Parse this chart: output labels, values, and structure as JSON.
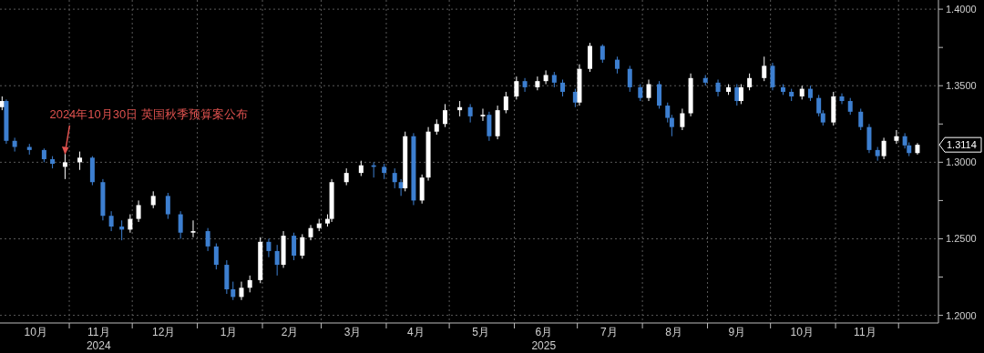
{
  "chart_data": {
    "type": "candlestick",
    "colors": [
      "#ffffff",
      "#3d7fd0",
      "#3d7fd0",
      "#3d7fd0",
      "#3d7fd0",
      "#3d7fd0",
      "#ffffff",
      "#ffffff",
      "#3d7fd0",
      "#3d7fd0",
      "#3d7fd0",
      "#3d7fd0",
      "#ffffff",
      "#ffffff",
      "#ffffff",
      "#3d7fd0",
      "#3d7fd0",
      "#ffffff",
      "#3d7fd0",
      "#3d7fd0",
      "#3d7fd0",
      "#3d7fd0",
      "#ffffff",
      "#ffffff",
      "#ffffff",
      "#3d7fd0",
      "#3d7fd0",
      "#ffffff",
      "#3d7fd0",
      "#ffffff",
      "#ffffff",
      "#ffffff",
      "#ffffff",
      "#ffffff",
      "#ffffff",
      "#ffffff",
      "#3d7fd0",
      "#3d7fd0",
      "#3d7fd0",
      "#3d7fd0",
      "#ffffff",
      "#3d7fd0",
      "#ffffff",
      "#ffffff",
      "#ffffff",
      "#ffffff",
      "#ffffff",
      "#3d7fd0",
      "#ffffff",
      "#3d7fd0",
      "#ffffff",
      "#ffffff",
      "#ffffff",
      "#3d7fd0",
      "#ffffff",
      "#ffffff",
      "#3d7fd0",
      "#3d7fd0",
      "#3d7fd0",
      "#ffffff",
      "#ffffff",
      "#3d7fd0",
      "#3d7fd0",
      "#3d7fd0",
      "#3d7fd0",
      "#ffffff",
      "#3d7fd0",
      "#3d7fd0",
      "#3d7fd0",
      "#ffffff",
      "#ffffff",
      "#3d7fd0",
      "#3d7fd0",
      "#ffffff",
      "#3d7fd0",
      "#ffffff",
      "#ffffff",
      "#ffffff",
      "#3d7fd0",
      "#3d7fd0",
      "#3d7fd0",
      "#ffffff",
      "#3d7fd0",
      "#3d7fd0",
      "#3d7fd0",
      "#ffffff",
      "#3d7fd0",
      "#3d7fd0",
      "#3d7fd0",
      "#3d7fd0",
      "#3d7fd0",
      "#ffffff",
      "#ffffff",
      "#3d7fd0",
      "#3d7fd0",
      "#ffffff"
    ],
    "grid": true,
    "xlim": [
      "2024-09-29",
      "2025-12-20"
    ],
    "ylim": [
      1.195,
      1.406
    ],
    "yticks": [
      {
        "value": 1.2,
        "label": "1.2000"
      },
      {
        "value": 1.225,
        "label": null
      },
      {
        "value": 1.25,
        "label": "1.2500"
      },
      {
        "value": 1.275,
        "label": null
      },
      {
        "value": 1.3,
        "label": "1.3000"
      },
      {
        "value": 1.325,
        "label": null
      },
      {
        "value": 1.35,
        "label": "1.3500"
      },
      {
        "value": 1.375,
        "label": null
      },
      {
        "value": 1.4,
        "label": "1.4000"
      }
    ],
    "xticks": [
      {
        "value": "2024-10-16",
        "label": "10月"
      },
      {
        "value": "2024-11-01",
        "label": null
      },
      {
        "value": "2024-11-15",
        "label": "11月\n2024"
      },
      {
        "value": "2024-12-01",
        "label": null
      },
      {
        "value": "2024-12-16",
        "label": "12月"
      },
      {
        "value": "2025-01-01",
        "label": null
      },
      {
        "value": "2025-01-16",
        "label": "1月"
      },
      {
        "value": "2025-02-01",
        "label": null
      },
      {
        "value": "2025-02-14",
        "label": "2月"
      },
      {
        "value": "2025-03-01",
        "label": null
      },
      {
        "value": "2025-03-16",
        "label": "3月"
      },
      {
        "value": "2025-04-01",
        "label": null
      },
      {
        "value": "2025-04-15",
        "label": "4月"
      },
      {
        "value": "2025-05-01",
        "label": null
      },
      {
        "value": "2025-05-16",
        "label": "5月"
      },
      {
        "value": "2025-06-01",
        "label": null
      },
      {
        "value": "2025-06-15",
        "label": "6月\n2025"
      },
      {
        "value": "2025-07-01",
        "label": null
      },
      {
        "value": "2025-07-16",
        "label": "7月"
      },
      {
        "value": "2025-08-01",
        "label": null
      },
      {
        "value": "2025-08-16",
        "label": "8月"
      },
      {
        "value": "2025-09-01",
        "label": null
      },
      {
        "value": "2025-09-15",
        "label": "9月"
      },
      {
        "value": "2025-10-01",
        "label": null
      },
      {
        "value": "2025-10-16",
        "label": "10月"
      },
      {
        "value": "2025-11-01",
        "label": null
      },
      {
        "value": "2025-11-15",
        "label": "11月"
      },
      {
        "value": "2025-12-01",
        "label": null
      }
    ],
    "annotations": [
      {
        "text": "2024年10月30日 英国秋季预算案公布",
        "x": "2024-10-30",
        "y": 1.305
      },
      {
        "text": "1.3114",
        "x": "2025-12-10",
        "y": 1.3114
      }
    ],
    "x": [
      "2024-09-30",
      "2024-10-02",
      "2024-10-06",
      "2024-10-13",
      "2024-10-20",
      "2024-10-24",
      "2024-10-30",
      "2024-11-06",
      "2024-11-12",
      "2024-11-17",
      "2024-11-21",
      "2024-11-26",
      "2024-11-30",
      "2024-12-04",
      "2024-12-11",
      "2024-12-18",
      "2024-12-24",
      "2024-12-30",
      "2025-01-06",
      "2025-01-10",
      "2025-01-15",
      "2025-01-18",
      "2025-01-22",
      "2025-01-26",
      "2025-01-31",
      "2025-02-04",
      "2025-02-08",
      "2025-02-11",
      "2025-02-16",
      "2025-02-20",
      "2025-02-24",
      "2025-02-28",
      "2025-03-04",
      "2025-03-06",
      "2025-03-13",
      "2025-03-20",
      "2025-03-26",
      "2025-03-31",
      "2025-04-05",
      "2025-04-08",
      "2025-04-10",
      "2025-04-14",
      "2025-04-18",
      "2025-04-21",
      "2025-04-25",
      "2025-04-29",
      "2025-05-06",
      "2025-05-11",
      "2025-05-17",
      "2025-05-20",
      "2025-05-24",
      "2025-05-28",
      "2025-06-02",
      "2025-06-06",
      "2025-06-12",
      "2025-06-16",
      "2025-06-20",
      "2025-06-24",
      "2025-06-30",
      "2025-07-02",
      "2025-07-07",
      "2025-07-13",
      "2025-07-20",
      "2025-07-26",
      "2025-07-31",
      "2025-08-04",
      "2025-08-09",
      "2025-08-13",
      "2025-08-15",
      "2025-08-20",
      "2025-08-24",
      "2025-08-31",
      "2025-09-06",
      "2025-09-11",
      "2025-09-15",
      "2025-09-17",
      "2025-09-21",
      "2025-09-28",
      "2025-10-02",
      "2025-10-07",
      "2025-10-11",
      "2025-10-16",
      "2025-10-20",
      "2025-10-24",
      "2025-10-26",
      "2025-10-31",
      "2025-11-04",
      "2025-11-08",
      "2025-11-13",
      "2025-11-17",
      "2025-11-21",
      "2025-11-24",
      "2025-11-30",
      "2025-12-04",
      "2025-12-06",
      "2025-12-10"
    ],
    "ohlc": [
      [
        1.336,
        1.343,
        1.334,
        1.34
      ],
      [
        1.34,
        1.341,
        1.312,
        1.314
      ],
      [
        1.314,
        1.316,
        1.307,
        1.31
      ],
      [
        1.31,
        1.312,
        1.305,
        1.308
      ],
      [
        1.308,
        1.309,
        1.3,
        1.302
      ],
      [
        1.302,
        1.304,
        1.296,
        1.299
      ],
      [
        1.297,
        1.306,
        1.289,
        1.3
      ],
      [
        1.3,
        1.307,
        1.295,
        1.303
      ],
      [
        1.303,
        1.304,
        1.285,
        1.287
      ],
      [
        1.287,
        1.289,
        1.262,
        1.265
      ],
      [
        1.265,
        1.268,
        1.255,
        1.258
      ],
      [
        1.258,
        1.262,
        1.249,
        1.256
      ],
      [
        1.256,
        1.266,
        1.254,
        1.263
      ],
      [
        1.263,
        1.275,
        1.261,
        1.272
      ],
      [
        1.272,
        1.281,
        1.27,
        1.278
      ],
      [
        1.278,
        1.28,
        1.263,
        1.266
      ],
      [
        1.266,
        1.268,
        1.25,
        1.254
      ],
      [
        1.254,
        1.262,
        1.251,
        1.255
      ],
      [
        1.255,
        1.257,
        1.242,
        1.245
      ],
      [
        1.245,
        1.247,
        1.23,
        1.233
      ],
      [
        1.233,
        1.236,
        1.214,
        1.217
      ],
      [
        1.217,
        1.222,
        1.21,
        1.212
      ],
      [
        1.212,
        1.222,
        1.21,
        1.218
      ],
      [
        1.218,
        1.226,
        1.215,
        1.223
      ],
      [
        1.223,
        1.251,
        1.221,
        1.248
      ],
      [
        1.248,
        1.25,
        1.238,
        1.242
      ],
      [
        1.242,
        1.246,
        1.226,
        1.233
      ],
      [
        1.233,
        1.255,
        1.231,
        1.252
      ],
      [
        1.252,
        1.254,
        1.236,
        1.239
      ],
      [
        1.239,
        1.253,
        1.237,
        1.251
      ],
      [
        1.251,
        1.259,
        1.249,
        1.257
      ],
      [
        1.257,
        1.263,
        1.255,
        1.26
      ],
      [
        1.26,
        1.266,
        1.258,
        1.263
      ],
      [
        1.263,
        1.289,
        1.261,
        1.287
      ],
      [
        1.287,
        1.296,
        1.285,
        1.293
      ],
      [
        1.293,
        1.301,
        1.291,
        1.298
      ],
      [
        1.298,
        1.3,
        1.29,
        1.297
      ],
      [
        1.297,
        1.299,
        1.289,
        1.293
      ],
      [
        1.293,
        1.296,
        1.283,
        1.287
      ],
      [
        1.287,
        1.289,
        1.278,
        1.283
      ],
      [
        1.283,
        1.32,
        1.281,
        1.317
      ],
      [
        1.317,
        1.319,
        1.272,
        1.275
      ],
      [
        1.275,
        1.292,
        1.273,
        1.29
      ],
      [
        1.29,
        1.323,
        1.288,
        1.32
      ],
      [
        1.32,
        1.328,
        1.318,
        1.325
      ],
      [
        1.325,
        1.338,
        1.323,
        1.334
      ],
      [
        1.334,
        1.34,
        1.33,
        1.336
      ],
      [
        1.336,
        1.338,
        1.326,
        1.33
      ],
      [
        1.33,
        1.335,
        1.327,
        1.331
      ],
      [
        1.331,
        1.333,
        1.314,
        1.317
      ],
      [
        1.317,
        1.337,
        1.315,
        1.334
      ],
      [
        1.334,
        1.346,
        1.332,
        1.343
      ],
      [
        1.343,
        1.356,
        1.341,
        1.353
      ],
      [
        1.353,
        1.355,
        1.346,
        1.349
      ],
      [
        1.349,
        1.356,
        1.347,
        1.353
      ],
      [
        1.353,
        1.36,
        1.351,
        1.357
      ],
      [
        1.357,
        1.359,
        1.349,
        1.352
      ],
      [
        1.352,
        1.354,
        1.343,
        1.346
      ],
      [
        1.346,
        1.348,
        1.336,
        1.339
      ],
      [
        1.339,
        1.364,
        1.337,
        1.361
      ],
      [
        1.361,
        1.378,
        1.359,
        1.376
      ],
      [
        1.376,
        1.377,
        1.365,
        1.367
      ],
      [
        1.367,
        1.369,
        1.358,
        1.361
      ],
      [
        1.361,
        1.363,
        1.346,
        1.349
      ],
      [
        1.349,
        1.351,
        1.34,
        1.342
      ],
      [
        1.342,
        1.354,
        1.34,
        1.351
      ],
      [
        1.351,
        1.353,
        1.335,
        1.337
      ],
      [
        1.337,
        1.339,
        1.326,
        1.329
      ],
      [
        1.329,
        1.331,
        1.317,
        1.323
      ],
      [
        1.323,
        1.335,
        1.321,
        1.332
      ],
      [
        1.332,
        1.358,
        1.33,
        1.355
      ],
      [
        1.355,
        1.357,
        1.35,
        1.352
      ],
      [
        1.352,
        1.354,
        1.343,
        1.346
      ],
      [
        1.346,
        1.351,
        1.344,
        1.349
      ],
      [
        1.349,
        1.351,
        1.337,
        1.34
      ],
      [
        1.34,
        1.351,
        1.338,
        1.349
      ],
      [
        1.349,
        1.358,
        1.347,
        1.355
      ],
      [
        1.355,
        1.369,
        1.353,
        1.363
      ],
      [
        1.363,
        1.365,
        1.347,
        1.349
      ],
      [
        1.349,
        1.351,
        1.344,
        1.346
      ],
      [
        1.346,
        1.348,
        1.34,
        1.343
      ],
      [
        1.343,
        1.35,
        1.341,
        1.348
      ],
      [
        1.348,
        1.35,
        1.34,
        1.342
      ],
      [
        1.342,
        1.344,
        1.33,
        1.332
      ],
      [
        1.332,
        1.334,
        1.324,
        1.326
      ],
      [
        1.326,
        1.346,
        1.324,
        1.343
      ],
      [
        1.343,
        1.345,
        1.338,
        1.34
      ],
      [
        1.34,
        1.342,
        1.331,
        1.333
      ],
      [
        1.333,
        1.335,
        1.321,
        1.323
      ],
      [
        1.323,
        1.325,
        1.306,
        1.308
      ],
      [
        1.308,
        1.31,
        1.301,
        1.304
      ],
      [
        1.304,
        1.316,
        1.302,
        1.314
      ],
      [
        1.314,
        1.321,
        1.312,
        1.317
      ],
      [
        1.317,
        1.319,
        1.309,
        1.311
      ],
      [
        1.311,
        1.313,
        1.304,
        1.306
      ],
      [
        1.306,
        1.3125,
        1.305,
        1.3114
      ]
    ]
  }
}
